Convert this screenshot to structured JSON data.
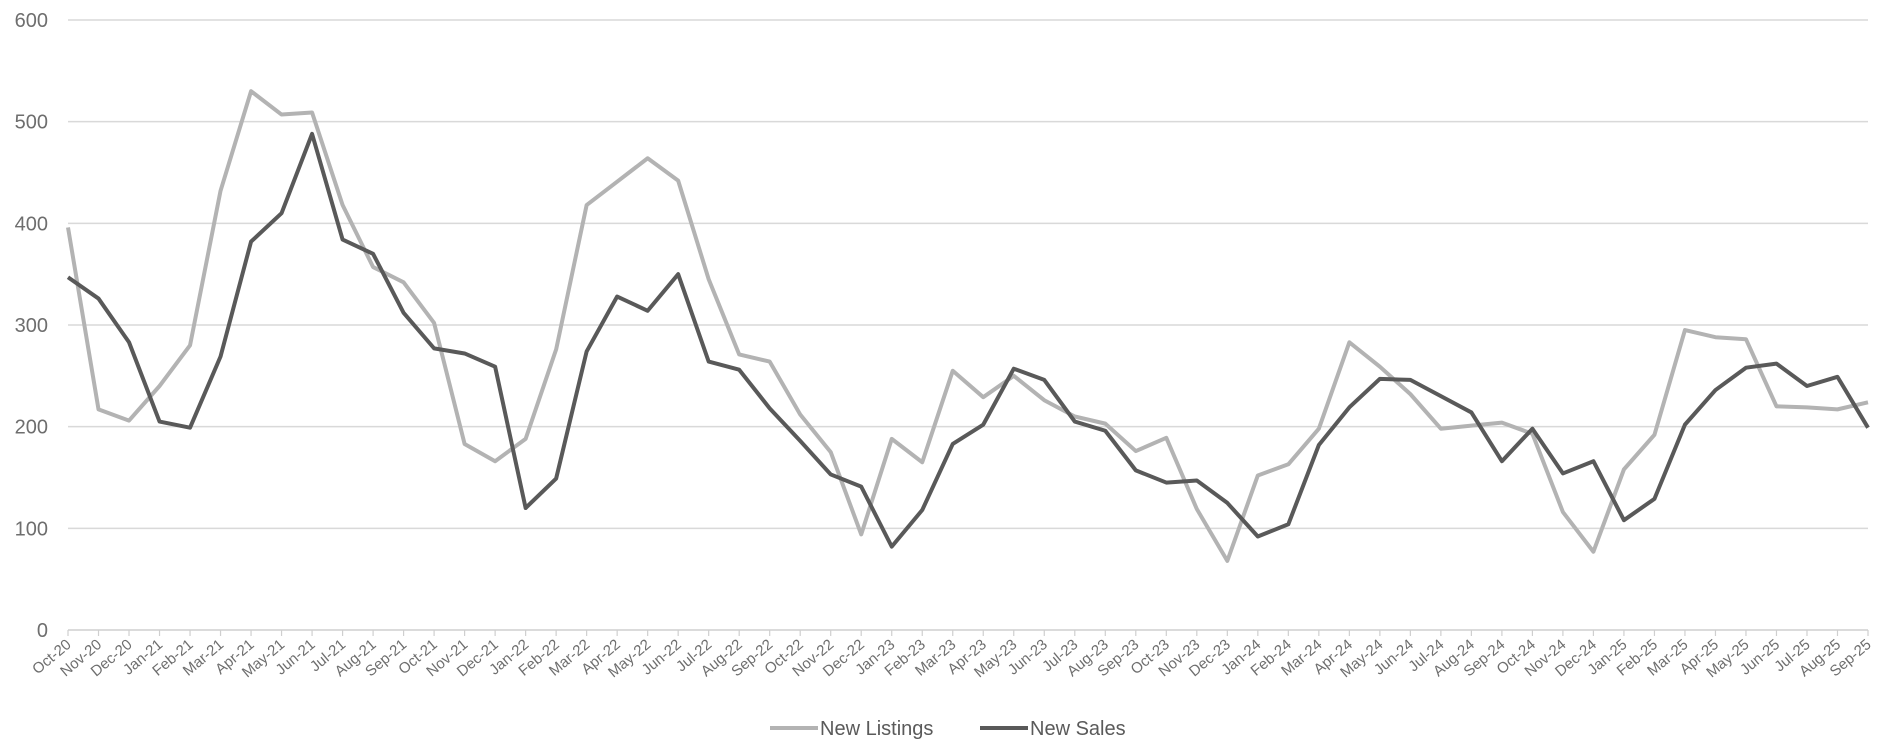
{
  "chart_data": {
    "type": "line",
    "title": "",
    "xlabel": "",
    "ylabel": "",
    "ylim": [
      0,
      600
    ],
    "yticks": [
      0,
      100,
      200,
      300,
      400,
      500,
      600
    ],
    "grid": true,
    "legend_position": "bottom-center",
    "categories": [
      "Oct-20",
      "Nov-20",
      "Dec-20",
      "Jan-21",
      "Feb-21",
      "Mar-21",
      "Apr-21",
      "May-21",
      "Jun-21",
      "Jul-21",
      "Aug-21",
      "Sep-21",
      "Oct-21",
      "Nov-21",
      "Dec-21",
      "Jan-22",
      "Feb-22",
      "Mar-22",
      "Apr-22",
      "May-22",
      "Jun-22",
      "Jul-22",
      "Aug-22",
      "Sep-22",
      "Oct-22",
      "Nov-22",
      "Dec-22",
      "Jan-23",
      "Feb-23",
      "Mar-23",
      "Apr-23",
      "May-23",
      "Jun-23",
      "Jul-23",
      "Aug-23",
      "Sep-23",
      "Oct-23",
      "Nov-23",
      "Dec-23",
      "Jan-24",
      "Feb-24",
      "Mar-24",
      "Apr-24",
      "May-24",
      "Jun-24",
      "Jul-24",
      "Aug-24",
      "Sep-24",
      "Oct-24",
      "Nov-24",
      "Dec-24",
      "Jan-25",
      "Feb-25",
      "Mar-25",
      "Apr-25",
      "May-25",
      "Jun-25",
      "Jul-25",
      "Aug-25",
      "Sep-25"
    ],
    "series": [
      {
        "name": "New Listings",
        "color": "#b3b3b3",
        "values": [
          396,
          217,
          206,
          240,
          280,
          432,
          530,
          507,
          509,
          418,
          357,
          342,
          302,
          183,
          166,
          188,
          276,
          418,
          441,
          464,
          442,
          345,
          271,
          264,
          212,
          175,
          94,
          188,
          165,
          255,
          229,
          250,
          226,
          210,
          203,
          176,
          189,
          119,
          68,
          152,
          163,
          198,
          283,
          259,
          232,
          198,
          201,
          204,
          193,
          116,
          77,
          158,
          192,
          295,
          288,
          286,
          220,
          219,
          217,
          224
        ],
        "line_width": 4
      },
      {
        "name": "New Sales",
        "color": "#595959",
        "values": [
          347,
          326,
          283,
          205,
          199,
          269,
          382,
          410,
          488,
          384,
          370,
          312,
          277,
          272,
          259,
          120,
          149,
          274,
          328,
          314,
          350,
          264,
          256,
          218,
          186,
          153,
          141,
          82,
          118,
          183,
          202,
          257,
          246,
          205,
          196,
          157,
          145,
          147,
          125,
          92,
          104,
          182,
          219,
          247,
          246,
          230,
          214,
          166,
          198,
          154,
          166,
          108,
          129,
          202,
          236,
          258,
          262,
          240,
          249,
          199
        ],
        "line_width": 4
      }
    ]
  }
}
